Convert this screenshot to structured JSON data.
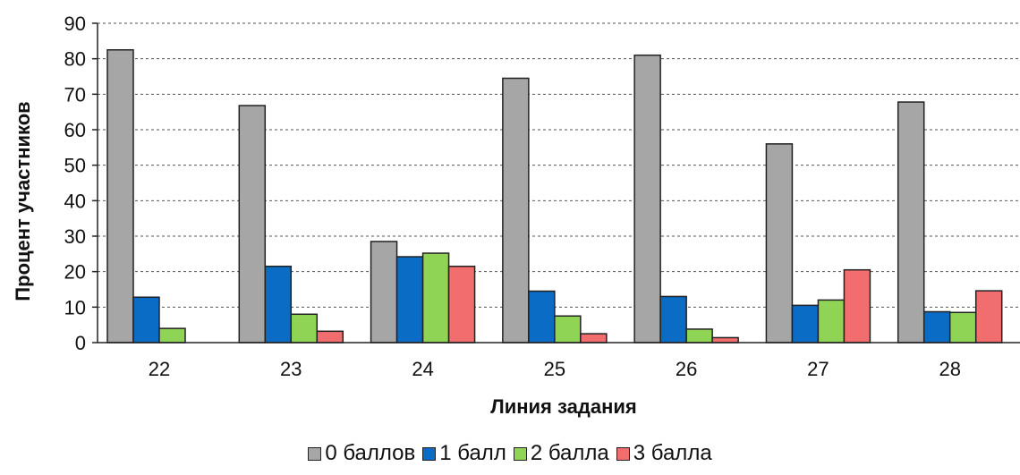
{
  "chart_data": {
    "type": "bar",
    "title": "",
    "xlabel": "Линия задания",
    "ylabel": "Процент участников",
    "ylim": [
      0,
      90
    ],
    "yticks": [
      0,
      10,
      20,
      30,
      40,
      50,
      60,
      70,
      80,
      90
    ],
    "grid": true,
    "legend_position": "bottom",
    "categories": [
      "22",
      "23",
      "24",
      "25",
      "26",
      "27",
      "28"
    ],
    "series": [
      {
        "name": "0 баллов",
        "color": "#a6a6a6",
        "values": [
          82.5,
          66.8,
          28.5,
          74.5,
          81,
          56,
          67.8
        ]
      },
      {
        "name": "1 балл",
        "color": "#0a6cc4",
        "values": [
          12.8,
          21.5,
          24.2,
          14.5,
          13,
          10.5,
          8.7
        ]
      },
      {
        "name": "2 балла",
        "color": "#8fd454",
        "values": [
          4,
          8,
          25.2,
          7.5,
          3.8,
          12,
          8.5
        ]
      },
      {
        "name": "3 балла",
        "color": "#f26d6d",
        "values": [
          0,
          3.2,
          21.5,
          2.5,
          1.4,
          20.5,
          14.6
        ]
      }
    ]
  }
}
